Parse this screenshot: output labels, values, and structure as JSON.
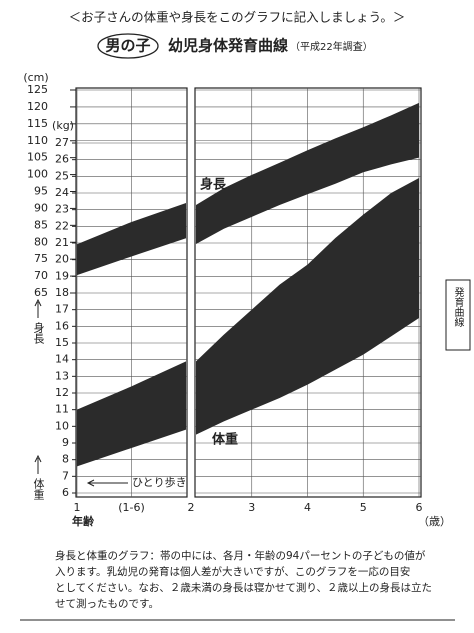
{
  "chart_data": {
    "type": "band",
    "instruction": "＜お子さんの体重や身長をこのグラフに記入しましょう。＞",
    "tag": "男の子",
    "title": "幼児身体発育曲線",
    "subtitle": "（平成22年調査）",
    "side_tab": "発育曲線",
    "xlabel": "年齢",
    "xunit": "（歳）",
    "ylabel": "(cm)",
    "y2label": "(kg)",
    "y_axis_title": "身長",
    "y2_axis_title": "体重",
    "annotation": "ひとり歩き",
    "panels": [
      {
        "xlim": [
          1,
          2
        ]
      },
      {
        "xlim": [
          2,
          6
        ]
      }
    ],
    "xticks": [
      1,
      {
        "value": 1.5,
        "label": "(1-6)"
      },
      2,
      3,
      4,
      5,
      6
    ],
    "ylim": [
      65,
      125
    ],
    "yticks": [
      65,
      70,
      75,
      80,
      85,
      90,
      95,
      100,
      105,
      110,
      115,
      120,
      125
    ],
    "y2lim": [
      6,
      27
    ],
    "y2ticks": [
      6,
      7,
      8,
      9,
      10,
      11,
      12,
      13,
      14,
      15,
      16,
      17,
      18,
      19,
      20,
      21,
      22,
      23,
      24,
      25,
      26,
      27
    ],
    "grid": true,
    "x": [
      1,
      1.5,
      2,
      null,
      2,
      2.5,
      3,
      3.5,
      4,
      4.5,
      5,
      5.5,
      6
    ],
    "series": [
      {
        "name": "身長",
        "color": "#2b2b2b",
        "axis": "y",
        "lower": [
          70.3,
          75.8,
          81.2,
          null,
          79.5,
          84,
          87.5,
          91,
          94.2,
          97.3,
          100.7,
          103,
          105
        ],
        "upper": [
          79.4,
          86,
          91.6,
          null,
          91,
          96,
          99.9,
          103.5,
          107.2,
          110.7,
          114,
          117.5,
          121.2
        ]
      },
      {
        "name": "体重",
        "color": "#2b2b2b",
        "axis": "y2",
        "lower": [
          7.6,
          8.7,
          9.8,
          null,
          9.5,
          10.3,
          11,
          11.7,
          12.5,
          13.4,
          14.3,
          15.4,
          16.5
        ],
        "upper": [
          11,
          12.4,
          13.9,
          null,
          13.9,
          15.5,
          17,
          18.5,
          19.7,
          21.3,
          22.7,
          24,
          24.9
        ]
      }
    ],
    "note_lines": [
      "身長と体重のグラフ：帯の中には、各月・年齢の94パーセントの子どもの値が",
      "入ります。乳幼児の発育は個人差が大きいですが、このグラフを一応の目安",
      "としてください。なお、２歳未満の身長は寝かせて測り、２歳以上の身長は立た",
      "せて測ったものです。"
    ]
  }
}
